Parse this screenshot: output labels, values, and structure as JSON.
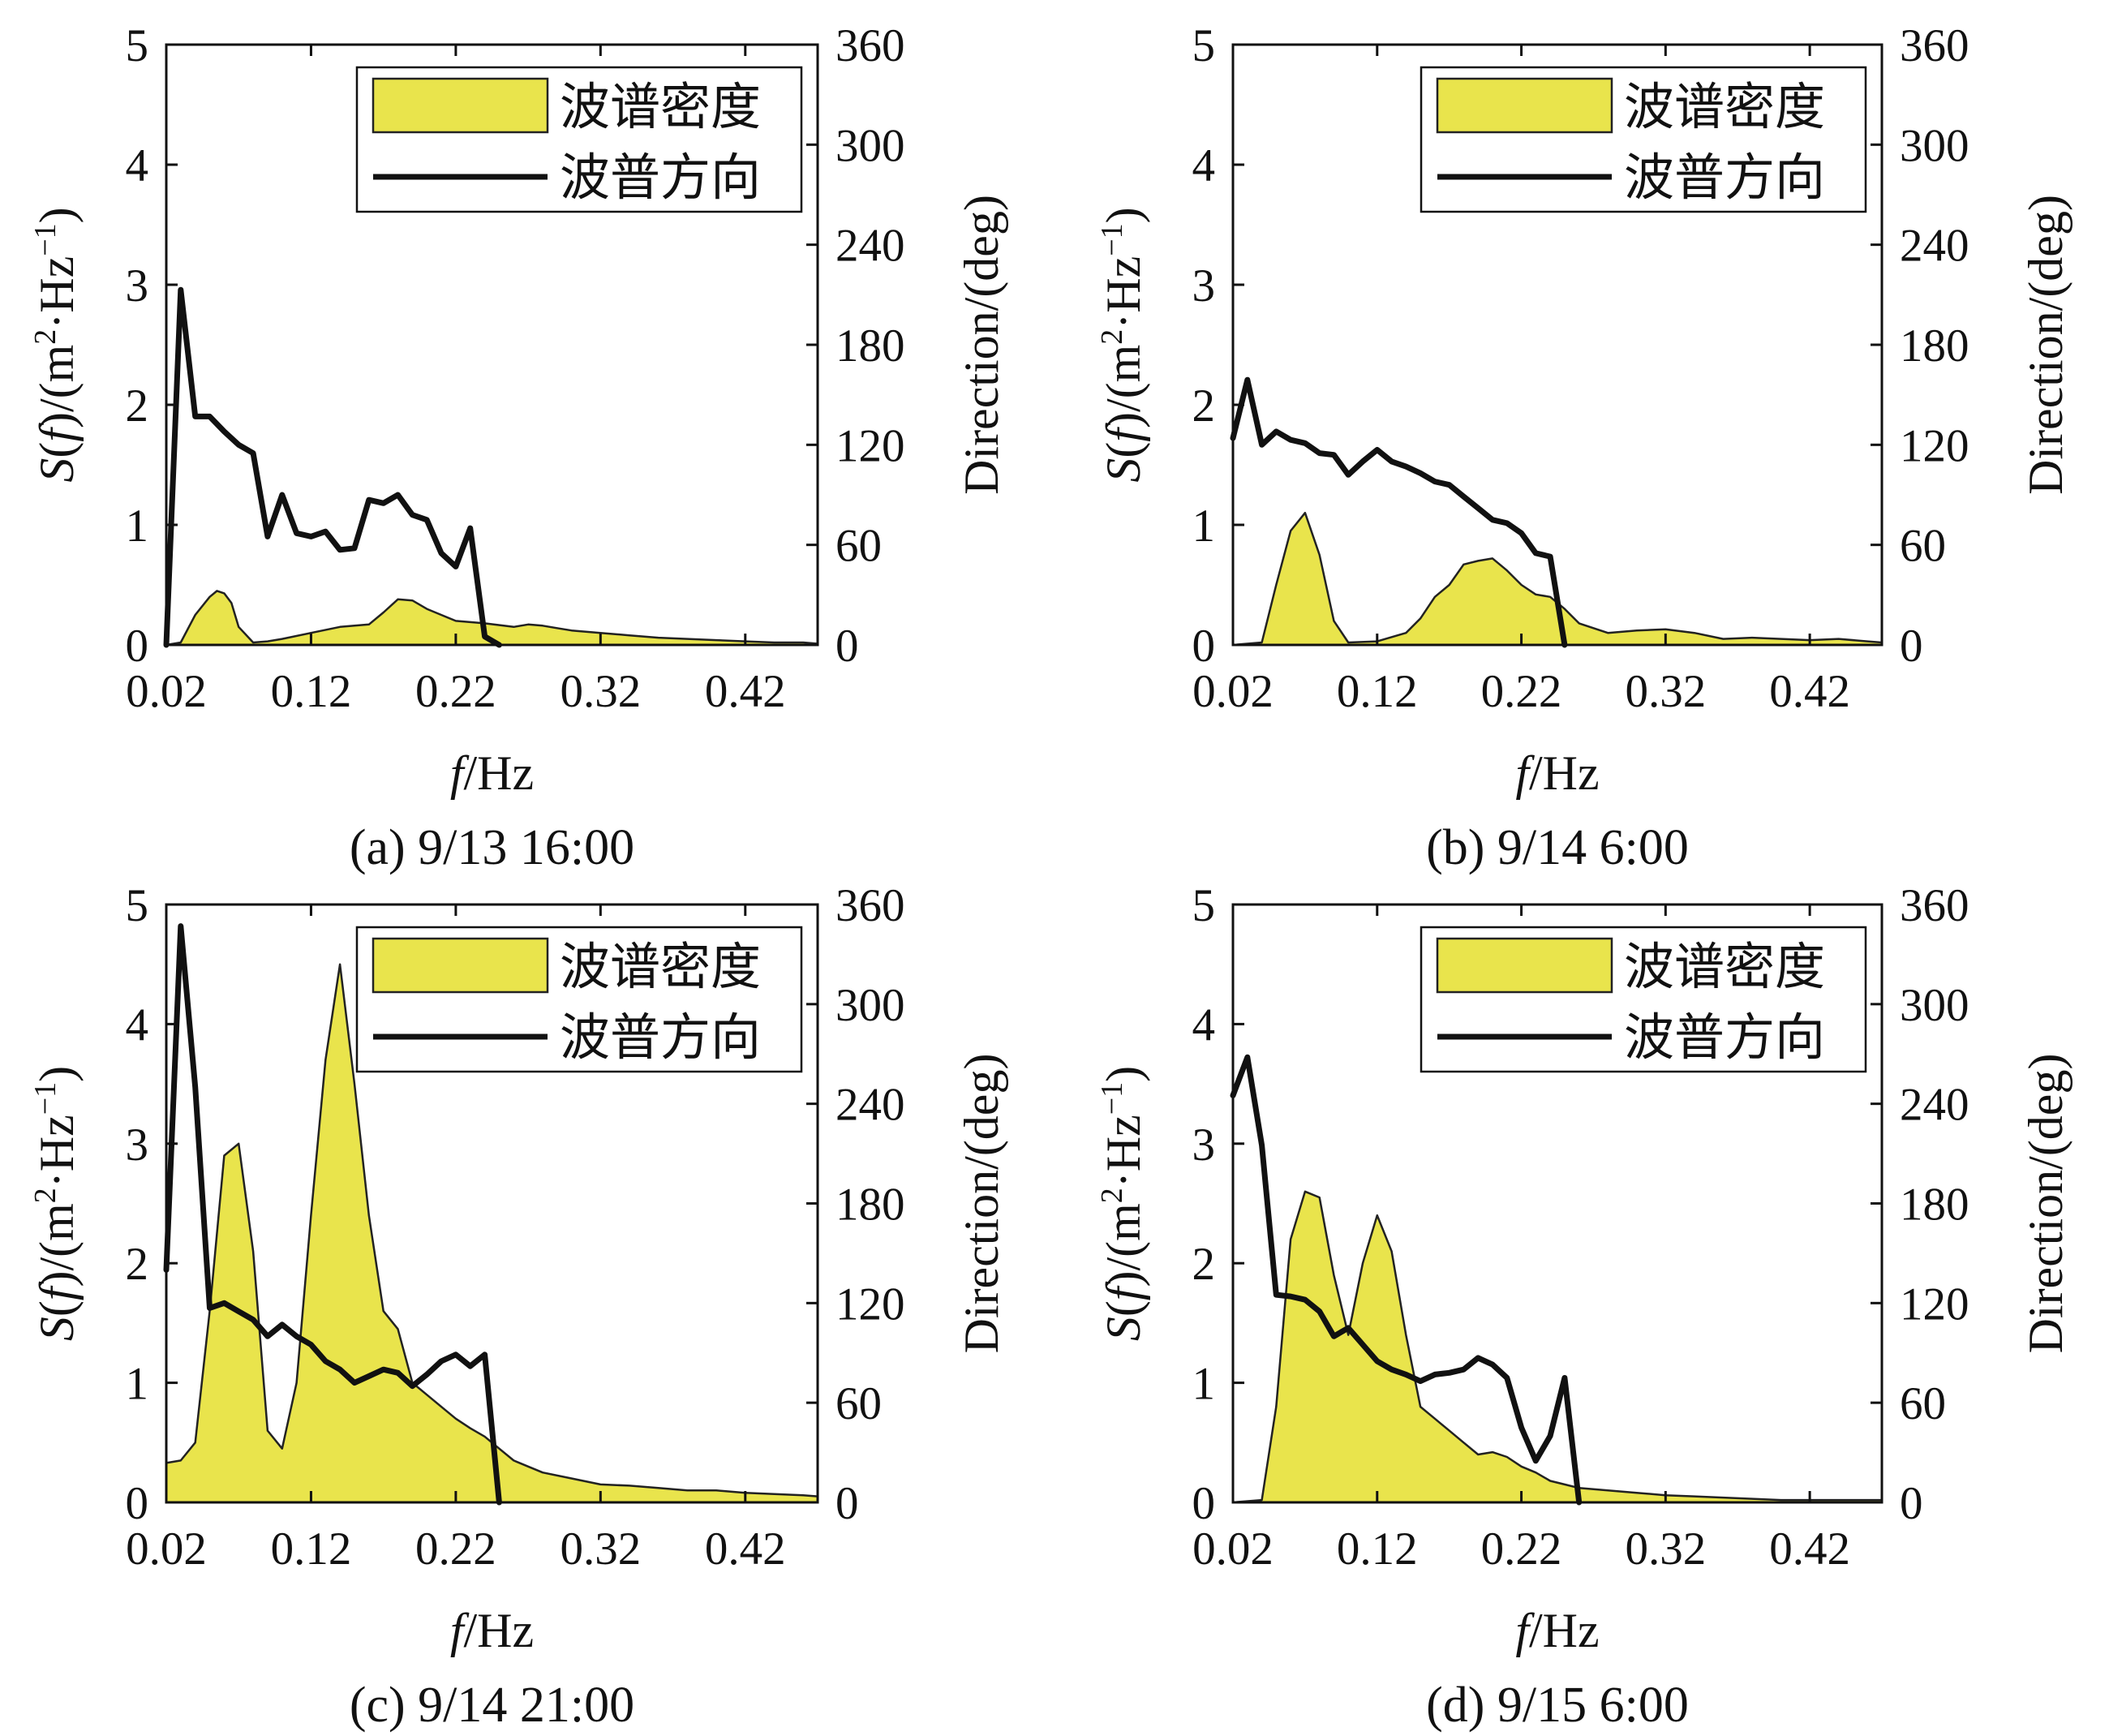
{
  "chart_data": [
    {
      "type": "area",
      "caption": "(a) 9/13 16:00",
      "xlabel_italic": "f",
      "xlabel_rest": "/Hz",
      "ylabel_left_italic_s": "S",
      "ylabel_left_paren_open": "(",
      "ylabel_left_italic_f": "f",
      "ylabel_left_rest": ")/(m",
      "ylabel_left_sup1": "2",
      "ylabel_left_mid": "·Hz",
      "ylabel_left_sup2": "−1",
      "ylabel_left_close": ")",
      "ylabel_right": "Direction/(deg)",
      "xlim": [
        0.02,
        0.47
      ],
      "xticks": [
        "0.02",
        "0.12",
        "0.22",
        "0.32",
        "0.42"
      ],
      "xtick_values": [
        0.02,
        0.12,
        0.22,
        0.32,
        0.42
      ],
      "ylim_left": [
        0,
        5
      ],
      "yticks_left": [
        "0",
        "1",
        "2",
        "3",
        "4",
        "5"
      ],
      "ylim_right": [
        0,
        360
      ],
      "yticks_right": [
        "0",
        "60",
        "120",
        "180",
        "240",
        "300",
        "360"
      ],
      "legend_position": "top-right",
      "series": [
        {
          "name": "波谱密度",
          "axis": "left",
          "style": "area",
          "color": "#e9e44c",
          "x": [
            0.02,
            0.03,
            0.04,
            0.05,
            0.055,
            0.06,
            0.065,
            0.07,
            0.08,
            0.09,
            0.1,
            0.12,
            0.14,
            0.16,
            0.17,
            0.18,
            0.19,
            0.2,
            0.21,
            0.22,
            0.24,
            0.26,
            0.27,
            0.28,
            0.29,
            0.3,
            0.32,
            0.34,
            0.36,
            0.38,
            0.4,
            0.42,
            0.44,
            0.46,
            0.47
          ],
          "values": [
            0.0,
            0.02,
            0.25,
            0.4,
            0.45,
            0.43,
            0.35,
            0.15,
            0.02,
            0.03,
            0.05,
            0.1,
            0.15,
            0.17,
            0.27,
            0.38,
            0.37,
            0.3,
            0.25,
            0.2,
            0.18,
            0.15,
            0.17,
            0.16,
            0.14,
            0.12,
            0.1,
            0.08,
            0.06,
            0.05,
            0.04,
            0.03,
            0.02,
            0.02,
            0.01
          ]
        },
        {
          "name": "波普方向",
          "axis": "right",
          "style": "line",
          "color": "#111111",
          "x": [
            0.02,
            0.03,
            0.04,
            0.05,
            0.06,
            0.07,
            0.08,
            0.09,
            0.1,
            0.11,
            0.12,
            0.13,
            0.14,
            0.15,
            0.16,
            0.17,
            0.18,
            0.19,
            0.2,
            0.21,
            0.22,
            0.23,
            0.24,
            0.25
          ],
          "values": [
            0,
            213,
            137,
            137,
            128,
            120,
            115,
            65,
            90,
            67,
            65,
            68,
            57,
            58,
            87,
            85,
            90,
            78,
            75,
            55,
            47,
            70,
            5,
            0
          ]
        }
      ]
    },
    {
      "type": "area",
      "caption": "(b) 9/14 6:00",
      "xlabel_italic": "f",
      "xlabel_rest": "/Hz",
      "ylabel_left_italic_s": "S",
      "ylabel_left_paren_open": "(",
      "ylabel_left_italic_f": "f",
      "ylabel_left_rest": ")/(m",
      "ylabel_left_sup1": "2",
      "ylabel_left_mid": "·Hz",
      "ylabel_left_sup2": "−1",
      "ylabel_left_close": ")",
      "ylabel_right": "Direction/(deg)",
      "xlim": [
        0.02,
        0.47
      ],
      "xticks": [
        "0.02",
        "0.12",
        "0.22",
        "0.32",
        "0.42"
      ],
      "xtick_values": [
        0.02,
        0.12,
        0.22,
        0.32,
        0.42
      ],
      "ylim_left": [
        0,
        5
      ],
      "yticks_left": [
        "0",
        "1",
        "2",
        "3",
        "4",
        "5"
      ],
      "ylim_right": [
        0,
        360
      ],
      "yticks_right": [
        "0",
        "60",
        "120",
        "180",
        "240",
        "300",
        "360"
      ],
      "legend_position": "top-right",
      "series": [
        {
          "name": "波谱密度",
          "axis": "left",
          "style": "area",
          "color": "#e9e44c",
          "x": [
            0.02,
            0.04,
            0.05,
            0.06,
            0.07,
            0.08,
            0.09,
            0.1,
            0.12,
            0.14,
            0.15,
            0.16,
            0.17,
            0.18,
            0.19,
            0.2,
            0.21,
            0.22,
            0.23,
            0.24,
            0.25,
            0.26,
            0.28,
            0.3,
            0.32,
            0.34,
            0.36,
            0.38,
            0.4,
            0.42,
            0.44,
            0.46,
            0.47
          ],
          "values": [
            0.0,
            0.02,
            0.5,
            0.95,
            1.1,
            0.75,
            0.2,
            0.02,
            0.03,
            0.1,
            0.22,
            0.4,
            0.5,
            0.67,
            0.7,
            0.72,
            0.62,
            0.5,
            0.42,
            0.4,
            0.3,
            0.18,
            0.1,
            0.12,
            0.13,
            0.1,
            0.05,
            0.06,
            0.05,
            0.04,
            0.05,
            0.03,
            0.02
          ]
        },
        {
          "name": "波普方向",
          "axis": "right",
          "style": "line",
          "color": "#111111",
          "x": [
            0.02,
            0.03,
            0.04,
            0.05,
            0.06,
            0.07,
            0.08,
            0.09,
            0.1,
            0.11,
            0.12,
            0.13,
            0.14,
            0.15,
            0.16,
            0.17,
            0.18,
            0.19,
            0.2,
            0.21,
            0.22,
            0.23,
            0.24,
            0.25
          ],
          "values": [
            124,
            159,
            120,
            128,
            123,
            121,
            115,
            114,
            102,
            110,
            117,
            110,
            107,
            103,
            98,
            96,
            89,
            82,
            75,
            73,
            67,
            55,
            53,
            0
          ]
        }
      ]
    },
    {
      "type": "area",
      "caption": "(c) 9/14 21:00",
      "xlabel_italic": "f",
      "xlabel_rest": "/Hz",
      "ylabel_left_italic_s": "S",
      "ylabel_left_paren_open": "(",
      "ylabel_left_italic_f": "f",
      "ylabel_left_rest": ")/(m",
      "ylabel_left_sup1": "2",
      "ylabel_left_mid": "·Hz",
      "ylabel_left_sup2": "−1",
      "ylabel_left_close": ")",
      "ylabel_right": "Direction/(deg)",
      "xlim": [
        0.02,
        0.47
      ],
      "xticks": [
        "0.02",
        "0.12",
        "0.22",
        "0.32",
        "0.42"
      ],
      "xtick_values": [
        0.02,
        0.12,
        0.22,
        0.32,
        0.42
      ],
      "ylim_left": [
        0,
        5
      ],
      "yticks_left": [
        "0",
        "1",
        "2",
        "3",
        "4",
        "5"
      ],
      "ylim_right": [
        0,
        360
      ],
      "yticks_right": [
        "0",
        "60",
        "120",
        "180",
        "240",
        "300",
        "360"
      ],
      "legend_position": "top-right",
      "series": [
        {
          "name": "波谱密度",
          "axis": "left",
          "style": "area",
          "color": "#e9e44c",
          "x": [
            0.02,
            0.03,
            0.04,
            0.05,
            0.06,
            0.07,
            0.08,
            0.09,
            0.1,
            0.11,
            0.12,
            0.13,
            0.14,
            0.15,
            0.16,
            0.17,
            0.18,
            0.19,
            0.2,
            0.21,
            0.22,
            0.23,
            0.24,
            0.25,
            0.26,
            0.27,
            0.28,
            0.3,
            0.32,
            0.34,
            0.36,
            0.38,
            0.4,
            0.42,
            0.44,
            0.46,
            0.47
          ],
          "values": [
            0.33,
            0.35,
            0.5,
            1.6,
            2.9,
            3.0,
            2.1,
            0.6,
            0.45,
            1.0,
            2.4,
            3.7,
            4.5,
            3.5,
            2.4,
            1.6,
            1.45,
            1.0,
            0.9,
            0.8,
            0.7,
            0.62,
            0.55,
            0.45,
            0.35,
            0.3,
            0.25,
            0.2,
            0.15,
            0.14,
            0.12,
            0.1,
            0.1,
            0.08,
            0.07,
            0.06,
            0.05
          ]
        },
        {
          "name": "波普方向",
          "axis": "right",
          "style": "line",
          "color": "#111111",
          "x": [
            0.02,
            0.03,
            0.04,
            0.05,
            0.06,
            0.07,
            0.08,
            0.09,
            0.1,
            0.11,
            0.12,
            0.13,
            0.14,
            0.15,
            0.16,
            0.17,
            0.18,
            0.19,
            0.2,
            0.21,
            0.22,
            0.23,
            0.24,
            0.25
          ],
          "values": [
            140,
            347,
            250,
            117,
            120,
            115,
            110,
            100,
            107,
            100,
            95,
            85,
            80,
            72,
            76,
            80,
            78,
            70,
            77,
            85,
            89,
            82,
            89,
            0
          ]
        }
      ]
    },
    {
      "type": "area",
      "caption": "(d) 9/15 6:00",
      "xlabel_italic": "f",
      "xlabel_rest": "/Hz",
      "ylabel_left_italic_s": "S",
      "ylabel_left_paren_open": "(",
      "ylabel_left_italic_f": "f",
      "ylabel_left_rest": ")/(m",
      "ylabel_left_sup1": "2",
      "ylabel_left_mid": "·Hz",
      "ylabel_left_sup2": "−1",
      "ylabel_left_close": ")",
      "ylabel_right": "Direction/(deg)",
      "xlim": [
        0.02,
        0.47
      ],
      "xticks": [
        "0.02",
        "0.12",
        "0.22",
        "0.32",
        "0.42"
      ],
      "xtick_values": [
        0.02,
        0.12,
        0.22,
        0.32,
        0.42
      ],
      "ylim_left": [
        0,
        5
      ],
      "yticks_left": [
        "0",
        "1",
        "2",
        "3",
        "4",
        "5"
      ],
      "ylim_right": [
        0,
        360
      ],
      "yticks_right": [
        "0",
        "60",
        "120",
        "180",
        "240",
        "300",
        "360"
      ],
      "legend_position": "top-right",
      "series": [
        {
          "name": "波谱密度",
          "axis": "left",
          "style": "area",
          "color": "#e9e44c",
          "x": [
            0.02,
            0.04,
            0.05,
            0.06,
            0.07,
            0.08,
            0.09,
            0.1,
            0.11,
            0.12,
            0.13,
            0.14,
            0.15,
            0.16,
            0.17,
            0.18,
            0.19,
            0.2,
            0.21,
            0.22,
            0.23,
            0.24,
            0.25,
            0.26,
            0.28,
            0.3,
            0.32,
            0.34,
            0.36,
            0.38,
            0.4,
            0.42,
            0.44,
            0.46,
            0.47
          ],
          "values": [
            0.0,
            0.02,
            0.8,
            2.2,
            2.6,
            2.55,
            1.9,
            1.4,
            2.0,
            2.4,
            2.1,
            1.4,
            0.8,
            0.7,
            0.6,
            0.5,
            0.4,
            0.42,
            0.38,
            0.3,
            0.25,
            0.18,
            0.15,
            0.12,
            0.1,
            0.08,
            0.06,
            0.05,
            0.04,
            0.03,
            0.02,
            0.02,
            0.02,
            0.02,
            0.02
          ]
        },
        {
          "name": "波普方向",
          "axis": "right",
          "style": "line",
          "color": "#111111",
          "x": [
            0.02,
            0.03,
            0.04,
            0.05,
            0.06,
            0.07,
            0.08,
            0.09,
            0.1,
            0.11,
            0.12,
            0.13,
            0.14,
            0.15,
            0.16,
            0.17,
            0.18,
            0.19,
            0.2,
            0.21,
            0.22,
            0.23,
            0.24,
            0.25,
            0.26
          ],
          "values": [
            245,
            268,
            215,
            125,
            124,
            122,
            115,
            100,
            105,
            95,
            85,
            80,
            77,
            73,
            77,
            78,
            80,
            87,
            83,
            75,
            45,
            25,
            40,
            75,
            0
          ]
        }
      ]
    }
  ]
}
